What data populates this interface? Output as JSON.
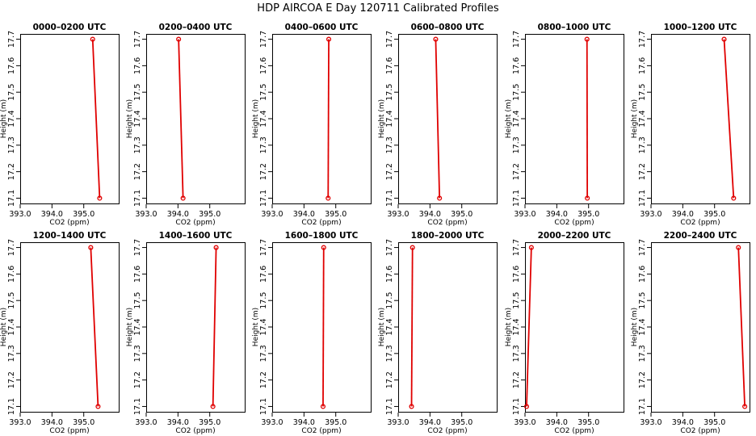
{
  "figure": {
    "title": "HDP AIRCOA E  Day 120711  Calibrated Profiles"
  },
  "chart_data": {
    "type": "line",
    "title": "HDP AIRCOA E  Day 120711  Calibrated Profiles",
    "xlabel": "CO2 (ppm)",
    "ylabel": "Height (m)",
    "xlim": [
      393.0,
      396.1
    ],
    "ylim": [
      17.08,
      17.72
    ],
    "xticks": [
      "393.0",
      "394.0",
      "395.0"
    ],
    "yticks": [
      "17.1",
      "17.2",
      "17.3",
      "17.4",
      "17.5",
      "17.6",
      "17.7"
    ],
    "heights": [
      17.7,
      17.1
    ],
    "marker": "open-circle",
    "line_color": "#e00000",
    "panels": [
      {
        "title": "0000–0200 UTC",
        "co2": [
          395.28,
          395.5
        ]
      },
      {
        "title": "0200–0400 UTC",
        "co2": [
          394.02,
          394.16
        ]
      },
      {
        "title": "0400–0600 UTC",
        "co2": [
          394.78,
          394.76
        ]
      },
      {
        "title": "0600–0800 UTC",
        "co2": [
          394.18,
          394.3
        ]
      },
      {
        "title": "0800–1000 UTC",
        "co2": [
          394.95,
          394.96
        ]
      },
      {
        "title": "1000–1200 UTC",
        "co2": [
          395.3,
          395.6
        ]
      },
      {
        "title": "1200–1400 UTC",
        "co2": [
          395.22,
          395.45
        ]
      },
      {
        "title": "1400–1600 UTC",
        "co2": [
          395.2,
          395.1
        ]
      },
      {
        "title": "1600–1800 UTC",
        "co2": [
          394.62,
          394.6
        ]
      },
      {
        "title": "1800–2000 UTC",
        "co2": [
          393.45,
          393.42
        ]
      },
      {
        "title": "2000–2200 UTC",
        "co2": [
          393.2,
          393.05
        ]
      },
      {
        "title": "2200–2400 UTC",
        "co2": [
          395.75,
          395.95
        ]
      }
    ]
  }
}
